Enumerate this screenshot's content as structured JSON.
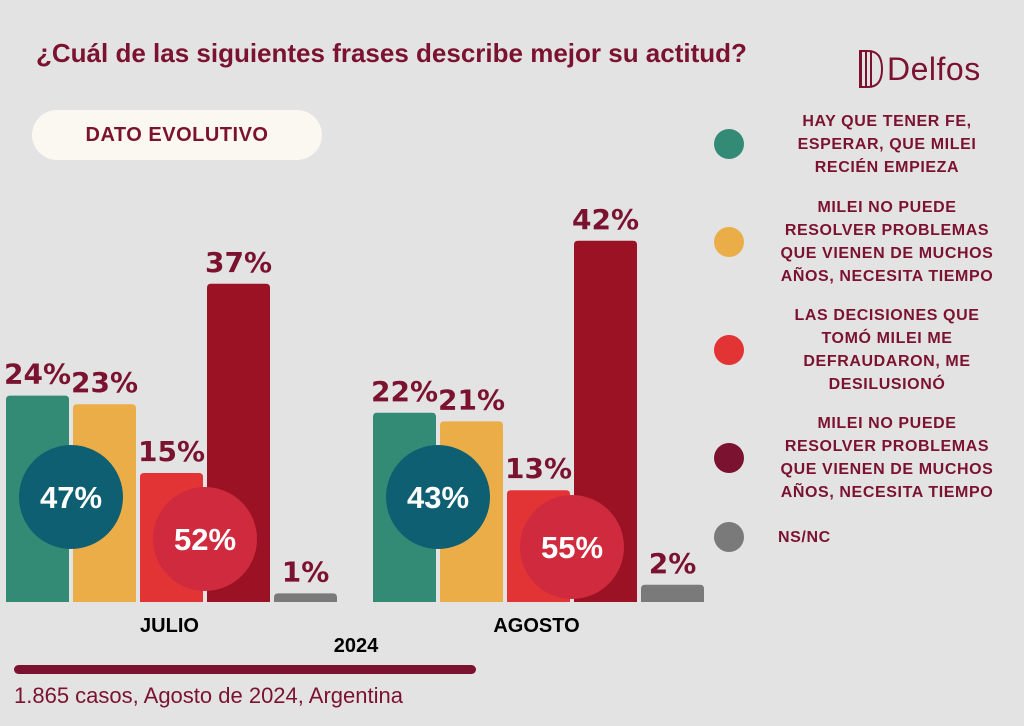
{
  "title": "¿Cuál de las siguientes frases describe mejor su actitud?",
  "badge": "DATO EVOLUTIVO",
  "brand": "Delfos",
  "footer": "1.865 casos, Agosto de 2024, Argentina",
  "colors": {
    "maroon": "#7b1230",
    "teal": "#338b76",
    "gold": "#ebad48",
    "red": "#e23335",
    "darkred": "#9b1224",
    "gray": "#7a7a7a",
    "circle_teal": "#0f5f73",
    "circle_red": "#d02a3f"
  },
  "legend": [
    {
      "label": "HAY QUE TENER FE,\nESPERAR, QUE MILEI\nRECIÉN EMPIEZA",
      "color": "#338b76"
    },
    {
      "label": "MILEI NO PUEDE\nRESOLVER PROBLEMAS\nQUE VIENEN DE MUCHOS\nAÑOS, NECESITA TIEMPO",
      "color": "#ebad48"
    },
    {
      "label": "LAS DECISIONES QUE\nTOMÓ MILEI ME\nDEFRAUDARON, ME\nDESILUSIONÓ",
      "color": "#e23335"
    },
    {
      "label": "MILEI NO PUEDE\nRESOLVER PROBLEMAS\nQUE VIENEN DE MUCHOS\nAÑOS, NECESITA TIEMPO",
      "color": "#7b1230"
    },
    {
      "label": "NS/NC",
      "color": "#7a7a7a"
    }
  ],
  "chart_data": {
    "type": "bar",
    "categories": [
      "JULIO",
      "AGOSTO"
    ],
    "group_label": "2024",
    "series": [
      {
        "values": [
          24,
          22
        ],
        "labels": [
          "24%",
          "22%"
        ],
        "color": "#338b76"
      },
      {
        "values": [
          23,
          21
        ],
        "labels": [
          "23%",
          "21%"
        ],
        "color": "#ebad48"
      },
      {
        "values": [
          15,
          13
        ],
        "labels": [
          "15%",
          "13%"
        ],
        "color": "#e23335"
      },
      {
        "values": [
          37,
          42
        ],
        "labels": [
          "37%",
          "42%"
        ],
        "color": "#9b1224"
      },
      {
        "values": [
          1,
          2
        ],
        "labels": [
          "1%",
          "2%"
        ],
        "color": "#7a7a7a"
      }
    ],
    "totals": [
      {
        "values": [
          47,
          43
        ],
        "labels": [
          "47%",
          "43%"
        ],
        "color": "#0f5f73"
      },
      {
        "values": [
          52,
          55
        ],
        "labels": [
          "52%",
          "55%"
        ],
        "color": "#d02a3f"
      }
    ]
  }
}
